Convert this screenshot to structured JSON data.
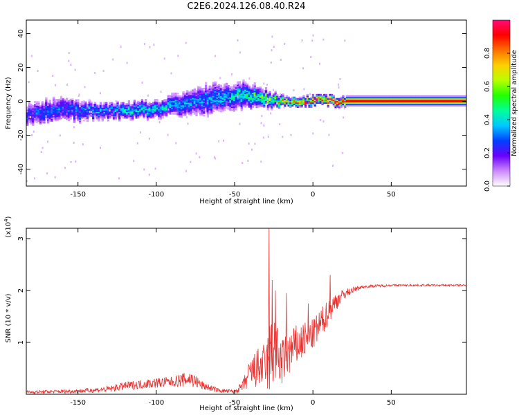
{
  "title": "C2E6.2024.126.08.40.R24",
  "chart_data": [
    {
      "type": "heatmap",
      "xlabel": "Height of straight line (km)",
      "ylabel": "Frequency (Hz)",
      "xlim": [
        -183,
        98
      ],
      "ylim": [
        -50,
        48
      ],
      "x_ticks": [
        -150,
        -100,
        -50,
        0,
        50
      ],
      "y_ticks": [
        40,
        20,
        0,
        -20,
        -40
      ],
      "x_tick_labels": [
        "-150",
        "-100",
        "-50",
        "0",
        "50"
      ],
      "y_tick_labels": [
        "40",
        "20",
        "0",
        "-20",
        "-40"
      ],
      "ridge": {
        "x": [
          -183,
          -170,
          -160,
          -150,
          -140,
          -130,
          -120,
          -110,
          -100,
          -90,
          -80,
          -72,
          -65,
          -55,
          -45,
          -38,
          -32,
          -25,
          -18,
          -10,
          0,
          10,
          18,
          30,
          50,
          70,
          98
        ],
        "center_hz": [
          -8,
          -6,
          -5,
          -6,
          -6,
          -6,
          -6,
          -5,
          -5,
          -3,
          -1,
          0,
          1,
          2,
          3,
          3,
          2,
          0,
          0,
          0,
          0,
          0,
          0,
          0,
          0,
          0,
          0
        ],
        "halfwidth_hz": [
          5,
          6,
          6,
          5,
          4,
          4,
          4,
          4,
          4,
          5,
          6,
          7,
          7,
          6,
          6,
          5,
          4,
          3,
          2,
          2,
          2,
          2,
          2,
          2,
          2,
          2,
          2
        ],
        "amplitude": [
          0.25,
          0.25,
          0.25,
          0.3,
          0.3,
          0.3,
          0.35,
          0.35,
          0.35,
          0.35,
          0.3,
          0.3,
          0.35,
          0.35,
          0.4,
          0.45,
          0.5,
          0.55,
          0.7,
          0.8,
          0.85,
          0.9,
          0.95,
          0.97,
          0.97,
          0.97,
          0.97
        ]
      },
      "colorbar": {
        "label": "Normalized spectral amplitude",
        "range": [
          0,
          1
        ],
        "ticks": [
          0.0,
          0.2,
          0.4,
          0.6,
          0.8
        ],
        "tick_labels": [
          "0.0",
          "0.2",
          "0.4",
          "0.6",
          "0.8"
        ],
        "colors": [
          "#ffffff",
          "#cc88ff",
          "#6a00ff",
          "#0040ff",
          "#00c8ff",
          "#00ff9a",
          "#22ff00",
          "#b8ff00",
          "#ffd000",
          "#ff7000",
          "#ff0000",
          "#ff0a7a"
        ]
      }
    },
    {
      "type": "line",
      "xlabel": "Height of straight line (km)",
      "ylabel": "SNR (10 * v/v)",
      "multiplier_label": "(x10",
      "multiplier_exp": "4",
      "xlim": [
        -183,
        98
      ],
      "ylim": [
        0,
        3.2
      ],
      "x_ticks": [
        -150,
        -100,
        -50,
        0,
        50
      ],
      "y_ticks": [
        1,
        2,
        3
      ],
      "x_tick_labels": [
        "-150",
        "-100",
        "-50",
        "0",
        "50"
      ],
      "y_tick_labels": [
        "1",
        "2",
        "3"
      ],
      "line_color": "#e8312f",
      "envelope": {
        "x": [
          -183,
          -150,
          -130,
          -120,
          -100,
          -90,
          -82,
          -78,
          -70,
          -60,
          -50,
          -45,
          -40,
          -35,
          -30,
          -27,
          -25,
          -22,
          -20,
          -15,
          -10,
          -5,
          0,
          5,
          10,
          15,
          20,
          25,
          30,
          35,
          50,
          70,
          98
        ],
        "mean": [
          0.04,
          0.06,
          0.1,
          0.16,
          0.22,
          0.24,
          0.28,
          0.3,
          0.16,
          0.07,
          0.05,
          0.15,
          0.4,
          0.5,
          0.55,
          0.7,
          0.9,
          0.7,
          0.6,
          0.8,
          0.95,
          1.05,
          1.15,
          1.35,
          1.6,
          1.8,
          1.93,
          2.0,
          2.06,
          2.08,
          2.1,
          2.1,
          2.1
        ],
        "noise": [
          0.03,
          0.04,
          0.06,
          0.08,
          0.1,
          0.1,
          0.14,
          0.16,
          0.08,
          0.04,
          0.04,
          0.1,
          0.3,
          0.4,
          0.45,
          0.8,
          0.8,
          0.5,
          0.45,
          0.45,
          0.4,
          0.35,
          0.3,
          0.3,
          0.25,
          0.18,
          0.1,
          0.06,
          0.04,
          0.03,
          0.02,
          0.02,
          0.02
        ]
      },
      "peaks": [
        [
          -28,
          3.2
        ],
        [
          -26,
          2.2
        ],
        [
          -24,
          2.0
        ],
        [
          -17,
          1.95
        ],
        [
          11,
          2.3
        ],
        [
          -3,
          1.75
        ]
      ]
    }
  ]
}
